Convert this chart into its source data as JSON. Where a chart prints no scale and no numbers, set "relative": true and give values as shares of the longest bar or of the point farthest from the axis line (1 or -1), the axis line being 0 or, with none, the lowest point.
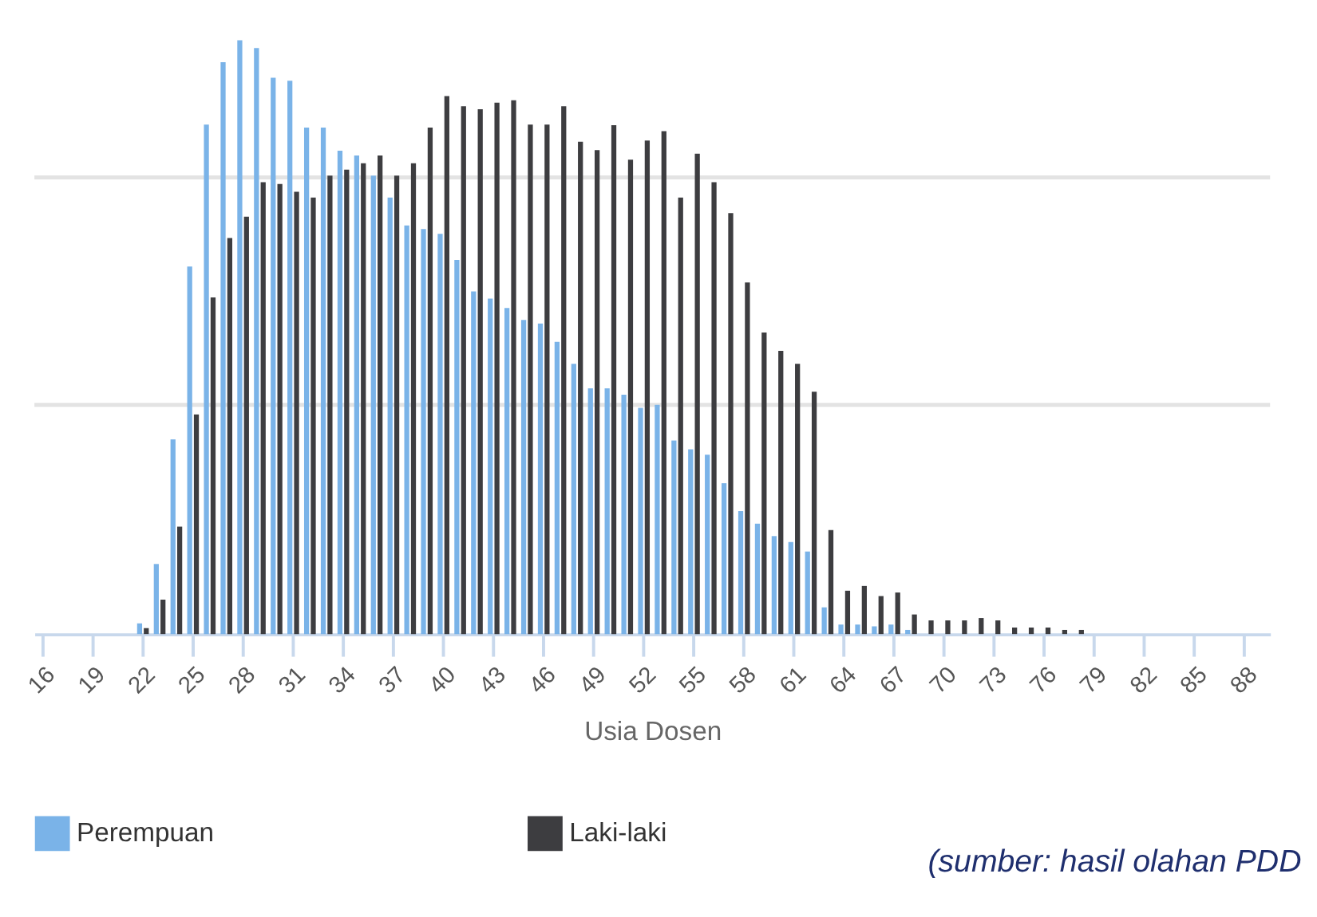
{
  "chart_data": {
    "type": "bar",
    "relative": true,
    "xlabel": "Usia Dosen",
    "legend": "bottom",
    "ref_lines": [
      {
        "axis": "y",
        "value": 0.386,
        "color": "#e3e3e3"
      },
      {
        "axis": "y",
        "value": 0.769,
        "color": "#e3e3e3"
      }
    ],
    "categories": [
      "16",
      null,
      null,
      "19",
      null,
      null,
      "22",
      null,
      null,
      "25",
      null,
      null,
      "28",
      null,
      null,
      "31",
      null,
      null,
      "34",
      null,
      null,
      "37",
      null,
      null,
      "40",
      null,
      null,
      "43",
      null,
      null,
      "46",
      null,
      null,
      "49",
      null,
      null,
      "52",
      null,
      null,
      "55",
      null,
      null,
      "58",
      null,
      null,
      "61",
      null,
      null,
      "64",
      null,
      null,
      "67",
      null,
      null,
      "70",
      null,
      null,
      "73",
      null,
      null,
      "76",
      null,
      null,
      "79",
      null,
      null,
      "82",
      null,
      null,
      "85",
      null,
      null,
      "88",
      null
    ],
    "series": [
      {
        "name": "Perempuan",
        "color": "#7ab3e8",
        "values": [
          0,
          0,
          0,
          0,
          0,
          0,
          0.018,
          0.118,
          0.328,
          0.619,
          0.858,
          0.963,
          1.0,
          0.987,
          0.937,
          0.932,
          0.853,
          0.853,
          0.814,
          0.806,
          0.772,
          0.735,
          0.688,
          0.682,
          0.674,
          0.63,
          0.577,
          0.565,
          0.549,
          0.529,
          0.523,
          0.492,
          0.455,
          0.414,
          0.414,
          0.403,
          0.381,
          0.386,
          0.326,
          0.311,
          0.302,
          0.254,
          0.207,
          0.186,
          0.165,
          0.155,
          0.139,
          0.045,
          0.016,
          0.016,
          0.013,
          0.016,
          0.007,
          0,
          0,
          0,
          0,
          0,
          0,
          0,
          0,
          0,
          0,
          0,
          0,
          0,
          0,
          0,
          0,
          0,
          0,
          0,
          0,
          0
        ]
      },
      {
        "name": "Laki-laki",
        "color": "#3d3d40",
        "values": [
          0,
          0,
          0,
          0,
          0,
          0,
          0.01,
          0.058,
          0.181,
          0.37,
          0.567,
          0.667,
          0.703,
          0.761,
          0.758,
          0.745,
          0.735,
          0.772,
          0.782,
          0.793,
          0.806,
          0.772,
          0.793,
          0.853,
          0.906,
          0.889,
          0.884,
          0.895,
          0.899,
          0.858,
          0.858,
          0.889,
          0.829,
          0.815,
          0.857,
          0.799,
          0.831,
          0.847,
          0.735,
          0.809,
          0.761,
          0.709,
          0.592,
          0.508,
          0.477,
          0.455,
          0.408,
          0.175,
          0.073,
          0.081,
          0.064,
          0.07,
          0.033,
          0.023,
          0.023,
          0.023,
          0.027,
          0.023,
          0.011,
          0.011,
          0.011,
          0.007,
          0.007,
          0,
          0,
          0,
          0,
          0,
          0,
          0,
          0,
          0,
          0,
          0
        ]
      }
    ],
    "annotations": [
      "(sumber: hasil olahan PDD"
    ]
  }
}
